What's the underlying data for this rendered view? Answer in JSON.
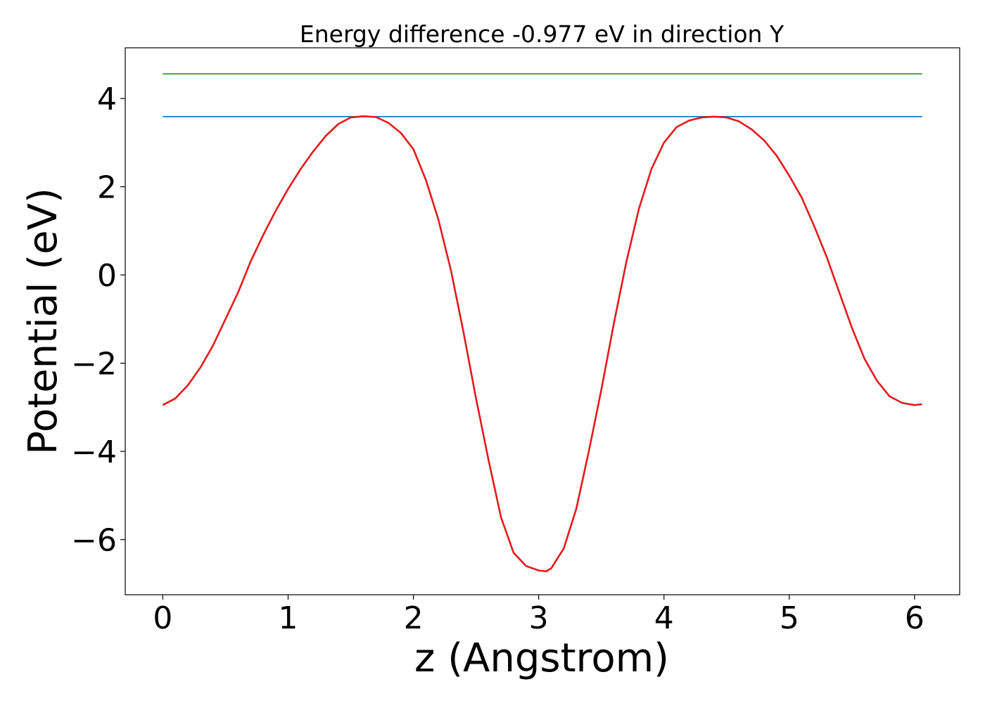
{
  "chart_data": {
    "type": "line",
    "title": "Energy difference -0.977 eV in direction Y",
    "xlabel": "z (Angstrom)",
    "ylabel": "Potential (eV)",
    "xlim": [
      -0.3,
      6.36
    ],
    "ylim": [
      -7.25,
      5.15
    ],
    "xticks": [
      0,
      1,
      2,
      3,
      4,
      5,
      6
    ],
    "xtick_labels": [
      "0",
      "1",
      "2",
      "3",
      "4",
      "5",
      "6"
    ],
    "yticks": [
      -6,
      -4,
      -2,
      0,
      2,
      4
    ],
    "ytick_labels": [
      "−6",
      "−4",
      "−2",
      "0",
      "2",
      "4"
    ],
    "grid": false,
    "series": [
      {
        "color": "#2ca02c",
        "x": [
          0,
          6.06
        ],
        "y": [
          4.56,
          4.56
        ]
      },
      {
        "color": "#1f77b4",
        "x": [
          0,
          6.06
        ],
        "y": [
          3.59,
          3.59
        ]
      },
      {
        "color": "#e31a1c",
        "x": [
          0,
          0.1,
          0.2,
          0.3,
          0.4,
          0.5,
          0.6,
          0.7,
          0.8,
          0.9,
          1.0,
          1.1,
          1.2,
          1.3,
          1.4,
          1.5,
          1.6,
          1.7,
          1.8,
          1.9,
          2.0,
          2.1,
          2.2,
          2.3,
          2.4,
          2.5,
          2.6,
          2.7,
          2.8,
          2.9,
          3.0,
          3.06,
          3.1,
          3.2,
          3.3,
          3.4,
          3.5,
          3.6,
          3.7,
          3.8,
          3.9,
          4.0,
          4.1,
          4.2,
          4.3,
          4.4,
          4.5,
          4.6,
          4.7,
          4.8,
          4.9,
          5.0,
          5.1,
          5.2,
          5.3,
          5.4,
          5.5,
          5.6,
          5.7,
          5.8,
          5.9,
          6.0,
          6.06
        ],
        "y": [
          -2.95,
          -2.8,
          -2.5,
          -2.1,
          -1.6,
          -1.0,
          -0.4,
          0.3,
          0.9,
          1.45,
          1.95,
          2.4,
          2.8,
          3.15,
          3.42,
          3.57,
          3.6,
          3.58,
          3.45,
          3.22,
          2.85,
          2.15,
          1.25,
          0.1,
          -1.3,
          -2.8,
          -4.2,
          -5.5,
          -6.3,
          -6.6,
          -6.7,
          -6.72,
          -6.65,
          -6.2,
          -5.3,
          -4.0,
          -2.6,
          -1.1,
          0.3,
          1.5,
          2.4,
          3.0,
          3.35,
          3.5,
          3.57,
          3.59,
          3.57,
          3.48,
          3.3,
          3.05,
          2.7,
          2.25,
          1.75,
          1.1,
          0.4,
          -0.4,
          -1.2,
          -1.9,
          -2.4,
          -2.75,
          -2.9,
          -2.95,
          -2.93
        ]
      }
    ]
  }
}
